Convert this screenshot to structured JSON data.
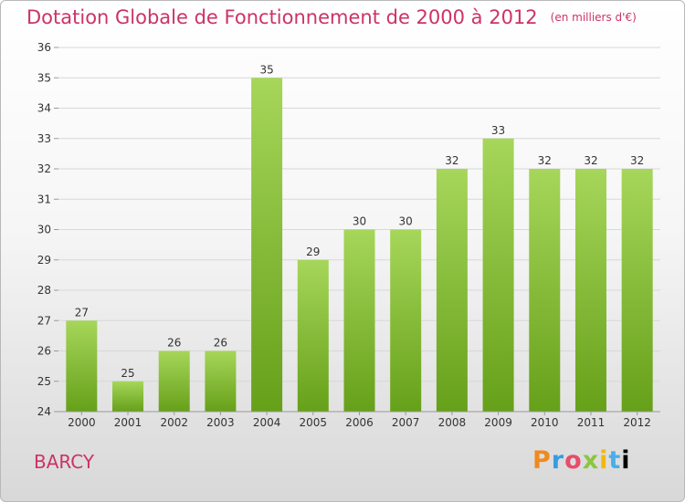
{
  "header": {
    "title": "Dotation Globale de Fonctionnement de 2000 à 2012",
    "subtitle": "(en milliers d'€)"
  },
  "place_label": "BARCY",
  "logo": {
    "text": "Proxiti",
    "letters": [
      "P",
      "r",
      "o",
      "x",
      "i",
      "t",
      "i"
    ]
  },
  "colors": {
    "title": "#cc3366",
    "bar_light": "#a6d65a",
    "bar_dark": "#66a019",
    "grid": "#d8d8d8",
    "axis_text": "#333333"
  },
  "chart_data": {
    "type": "bar",
    "title": "Dotation Globale de Fonctionnement de 2000 à 2012",
    "subtitle": "(en milliers d'€)",
    "categories": [
      "2000",
      "2001",
      "2002",
      "2003",
      "2004",
      "2005",
      "2006",
      "2007",
      "2008",
      "2009",
      "2010",
      "2011",
      "2012"
    ],
    "values": [
      27,
      25,
      26,
      26,
      35,
      29,
      30,
      30,
      32,
      33,
      32,
      32,
      32
    ],
    "ylim": [
      24,
      36
    ],
    "yticks": [
      24,
      25,
      26,
      27,
      28,
      29,
      30,
      31,
      32,
      33,
      34,
      35,
      36
    ],
    "grid": true,
    "data_labels": true,
    "legend": "none"
  }
}
